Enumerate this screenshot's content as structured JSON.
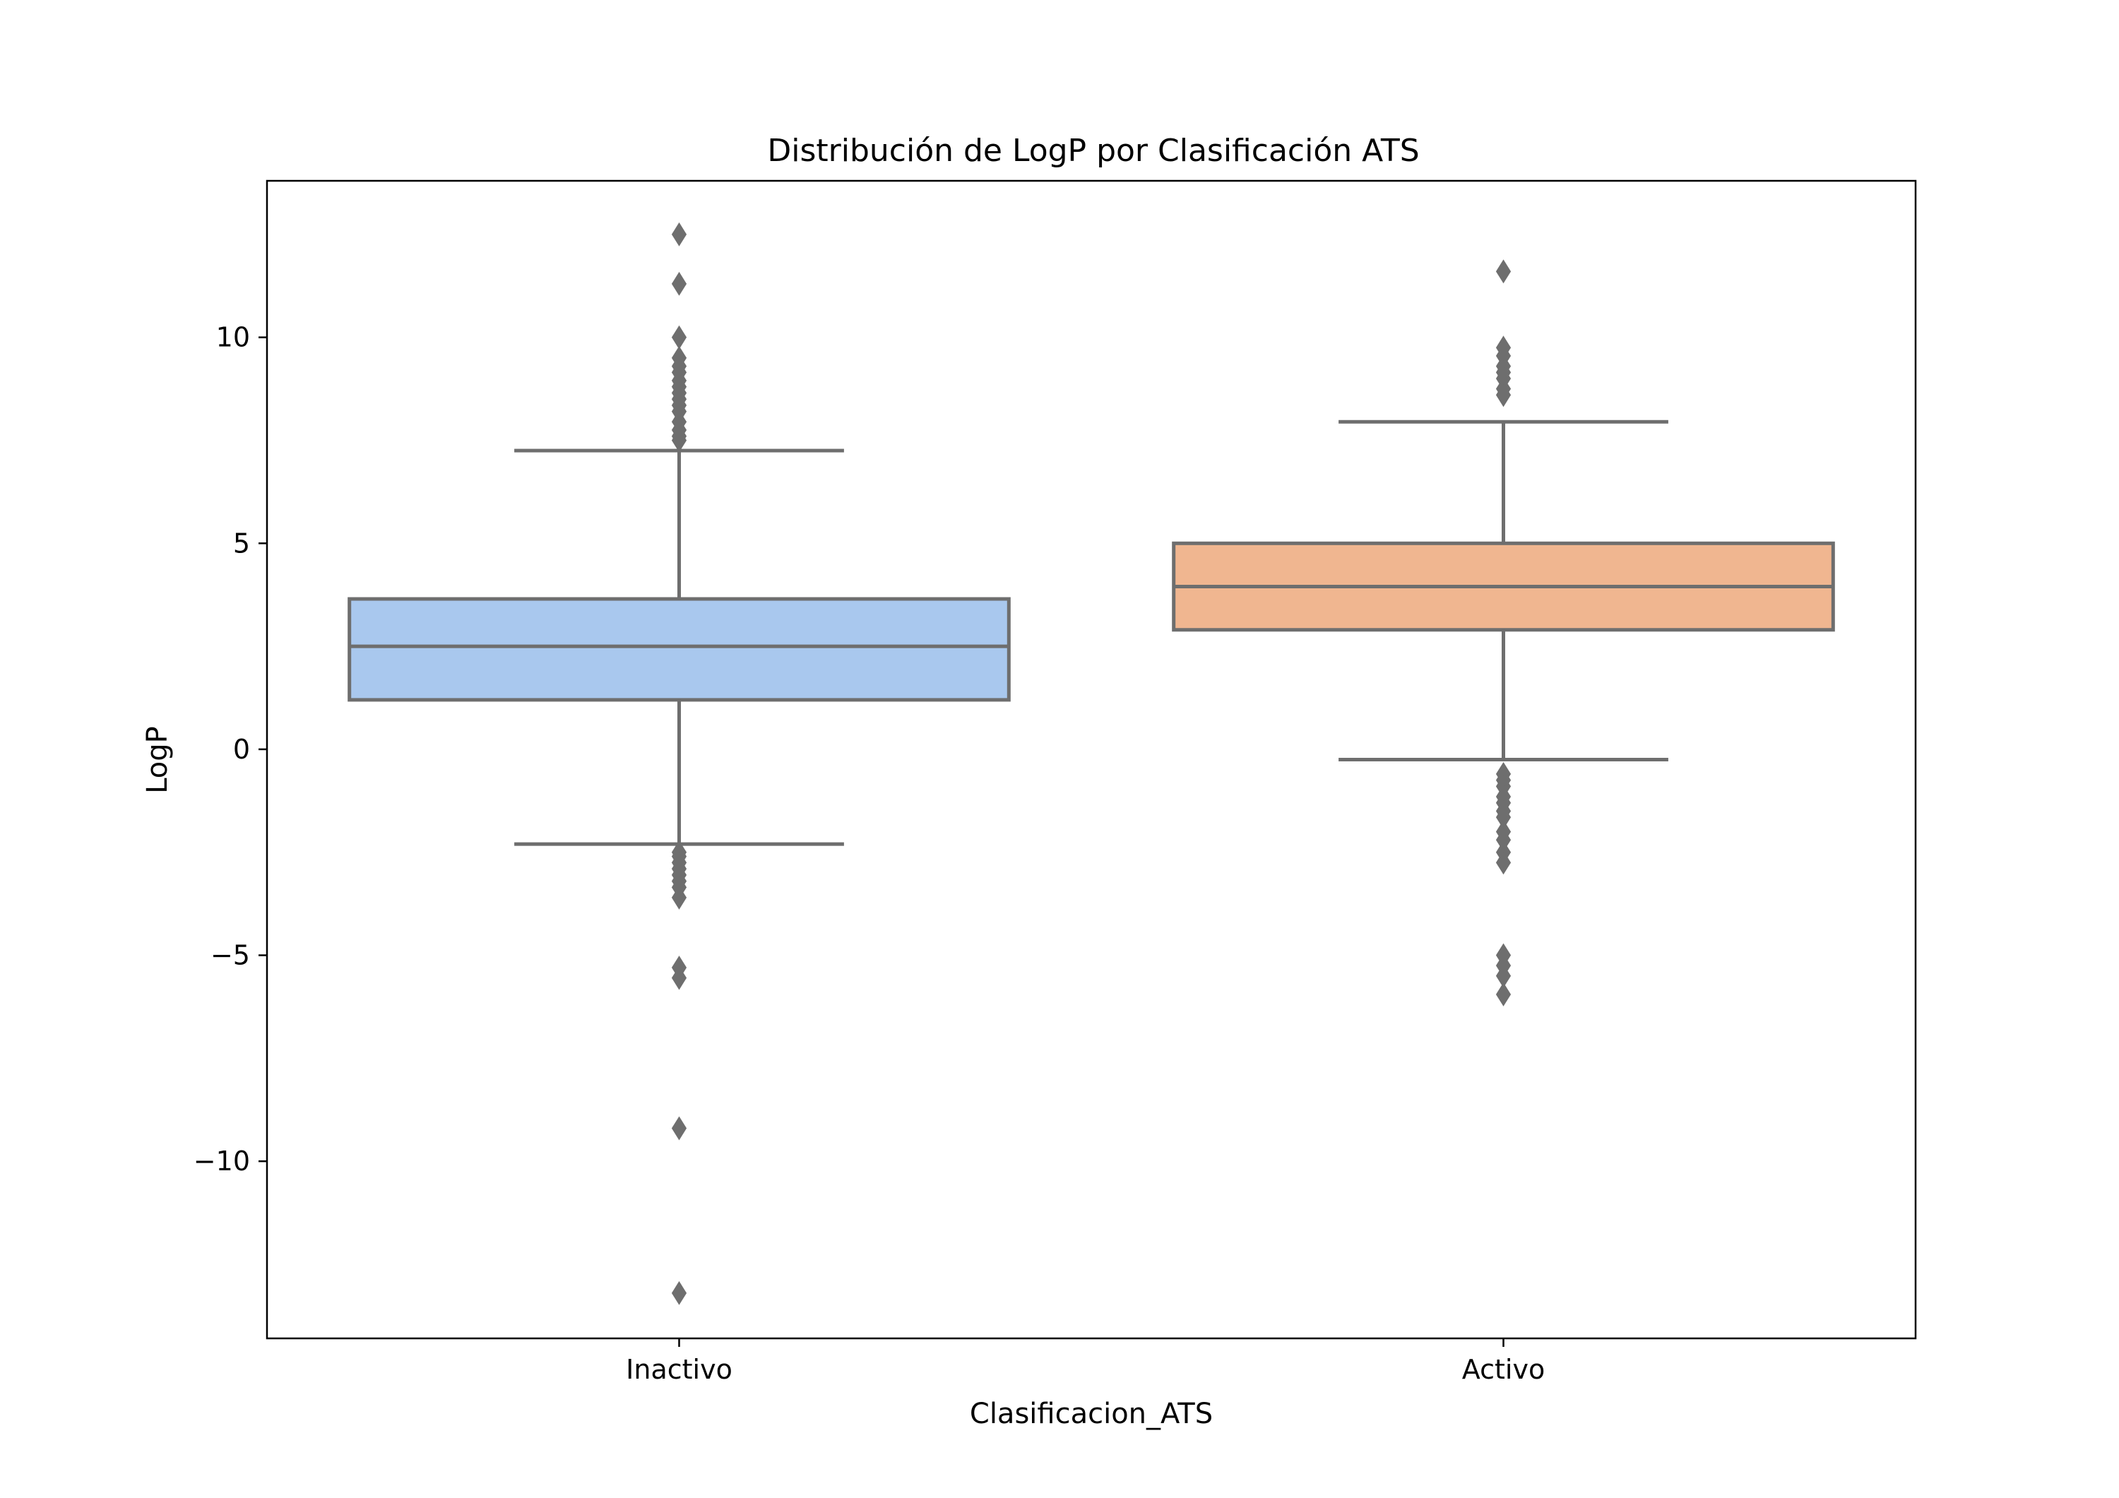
{
  "chart_data": {
    "type": "box",
    "title": "Distribución de LogP por Clasificación ATS",
    "xlabel": "Clasificacion_ATS",
    "ylabel": "LogP",
    "ylim": [
      -14.3,
      13.8
    ],
    "y_ticks": [
      -10,
      -5,
      0,
      5,
      10
    ],
    "y_tick_labels": [
      "−10",
      "−5",
      "0",
      "5",
      "10"
    ],
    "grid": false,
    "legend": "none",
    "line_color": "#6e6e6e",
    "categories": [
      "Inactivo",
      "Activo"
    ],
    "boxes": [
      {
        "category": "Inactivo",
        "color": "#a9c8ee",
        "whisker_low": -2.3,
        "q1": 1.2,
        "median": 2.5,
        "q3": 3.65,
        "whisker_high": 7.25,
        "outliers": [
          12.5,
          11.3,
          10.0,
          9.5,
          9.3,
          9.15,
          8.95,
          8.8,
          8.65,
          8.5,
          8.35,
          8.2,
          7.95,
          7.75,
          7.6,
          7.5,
          -2.5,
          -2.6,
          -2.75,
          -2.9,
          -3.05,
          -3.2,
          -3.35,
          -3.6,
          -5.3,
          -5.55,
          -9.2,
          -13.2
        ]
      },
      {
        "category": "Activo",
        "color": "#f0b690",
        "whisker_low": -0.25,
        "q1": 2.9,
        "median": 3.95,
        "q3": 5.0,
        "whisker_high": 7.95,
        "outliers": [
          11.6,
          9.75,
          9.55,
          9.3,
          9.15,
          9.0,
          8.75,
          8.6,
          -0.6,
          -0.75,
          -0.9,
          -1.15,
          -1.3,
          -1.5,
          -1.65,
          -2.0,
          -2.2,
          -2.5,
          -2.75,
          -5.0,
          -5.25,
          -5.5,
          -5.95
        ]
      }
    ]
  }
}
